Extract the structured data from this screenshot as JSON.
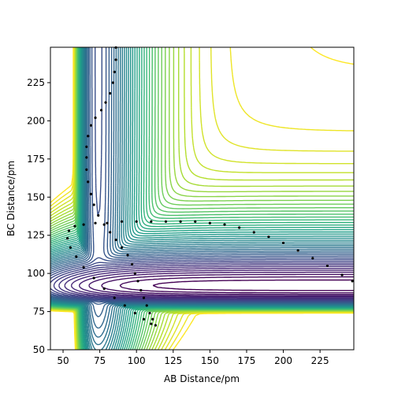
{
  "chart_data": {
    "type": "contour",
    "xlabel": "AB Distance/pm",
    "ylabel": "BC Distance/pm",
    "xlim": [
      41.4,
      248
    ],
    "ylim": [
      50,
      248.2
    ],
    "xticks": [
      50,
      75,
      100,
      125,
      150,
      175,
      200,
      225
    ],
    "yticks": [
      50,
      75,
      100,
      125,
      150,
      175,
      200,
      225
    ],
    "colormap": "viridis",
    "levels": [
      -560,
      -548,
      -536,
      -524,
      -512,
      -500,
      -488,
      -476,
      -464,
      -452,
      -440,
      -428,
      -416,
      -404,
      -392,
      -380,
      -368,
      -356,
      -344,
      -332,
      -320,
      -308,
      -296,
      -284,
      -272,
      -260,
      -248,
      -236,
      -224,
      -212,
      -200,
      -188,
      -176,
      -164,
      -152,
      -140,
      -128,
      -116,
      -104,
      -92,
      -80,
      -68,
      -56,
      -44,
      -32,
      -20
    ],
    "series": [
      {
        "color": "#000000",
        "x": [
          86,
          86,
          85,
          84,
          82,
          79,
          76,
          72,
          69,
          67,
          66,
          66,
          66,
          67,
          69,
          71,
          74,
          78,
          82,
          86,
          90,
          94,
          97,
          99,
          101,
          103,
          105,
          107,
          109,
          111,
          113,
          110,
          105,
          99,
          92,
          85,
          78,
          71,
          64,
          59,
          55,
          53,
          54,
          58,
          64,
          72,
          80,
          90,
          100,
          110,
          120,
          130,
          140,
          150,
          160,
          170,
          180,
          190,
          200,
          210,
          220,
          230,
          240,
          247
        ],
        "y": [
          248,
          240,
          232,
          225,
          218,
          212,
          207,
          202,
          197,
          190,
          183,
          176,
          168,
          160,
          152,
          145,
          138,
          132,
          127,
          122,
          117,
          112,
          106,
          100,
          95,
          89,
          84,
          79,
          74,
          70,
          66,
          67,
          70,
          74,
          79,
          84,
          90,
          97,
          104,
          111,
          117,
          123,
          128,
          131,
          132,
          133,
          133,
          134,
          134,
          134,
          134,
          134,
          134,
          133,
          132,
          130,
          127,
          124,
          120,
          115,
          110,
          105,
          99,
          95
        ]
      }
    ]
  }
}
